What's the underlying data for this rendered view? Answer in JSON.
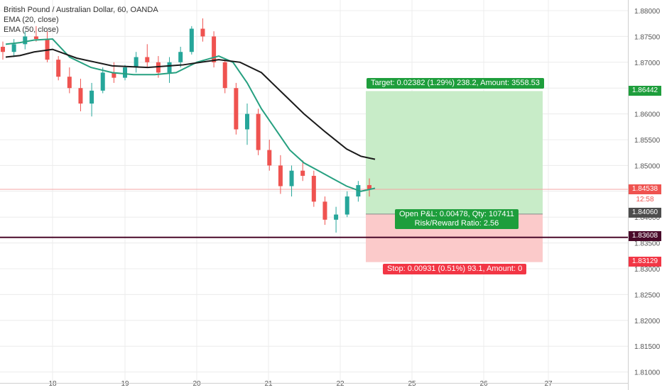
{
  "header": {
    "symbol_title": "British Pound / Australian Dollar, 60, OANDA",
    "ema20_label": "EMA (20, close)",
    "ema50_label": "EMA (50, close)"
  },
  "price_axis": {
    "ticks": [
      "1.88000",
      "1.87500",
      "1.87000",
      "1.86500",
      "1.86000",
      "1.85500",
      "1.85000",
      "1.84500",
      "1.84000",
      "1.83500",
      "1.83000",
      "1.82500",
      "1.82000",
      "1.81500",
      "1.81000"
    ],
    "tick_values": [
      1.88,
      1.875,
      1.87,
      1.865,
      1.86,
      1.855,
      1.85,
      1.845,
      1.84,
      1.835,
      1.83,
      1.825,
      1.82,
      1.815,
      1.81
    ]
  },
  "time_axis": {
    "labels": [
      "18",
      "19",
      "20",
      "21",
      "22",
      "25",
      "26",
      "27"
    ],
    "hour_index": [
      66,
      168,
      269,
      370,
      471,
      572,
      673,
      764
    ]
  },
  "tags": {
    "target": "1.86442",
    "last_price": "1.84538",
    "countdown": "12:58",
    "entry": "1.84060",
    "support": "1.83608",
    "stop": "1.83129"
  },
  "position": {
    "target_label": "Target: 0.02382 (1.29%) 238.2, Amount: 3558.53",
    "open_pnl_label": "Open P&L: 0.00478, Qty: 107411",
    "rr_label": "Risk/Reward Ratio: 2.56",
    "stop_label": "Stop: 0.00931 (0.51%) 93.1, Amount: 0"
  },
  "colors": {
    "up": "#26a69a",
    "down": "#ef5350",
    "ema20": "#26a080",
    "ema50": "#1a1a1a",
    "target_zone": "#c8ecc8",
    "stop_zone": "#fbcaca",
    "target_tag": "#1e9e3c",
    "stop_tag": "#f23645",
    "support": "#4a0a2a",
    "grid": "#ececec"
  },
  "chart_data": {
    "type": "candlestick",
    "title": "British Pound / Australian Dollar, 60, OANDA",
    "ylim": [
      1.8098,
      1.8822
    ],
    "grid": true,
    "series": [
      {
        "name": "EMA (20, close)",
        "values": [
          [
            0,
            1.8735
          ],
          [
            20,
            1.8738
          ],
          [
            40,
            1.8743
          ],
          [
            66,
            1.8745
          ],
          [
            90,
            1.871
          ],
          [
            120,
            1.869
          ],
          [
            150,
            1.868
          ],
          [
            180,
            1.8676
          ],
          [
            210,
            1.8676
          ],
          [
            240,
            1.868
          ],
          [
            269,
            1.87
          ],
          [
            300,
            1.8712
          ],
          [
            320,
            1.87
          ],
          [
            340,
            1.866
          ],
          [
            360,
            1.861
          ],
          [
            380,
            1.857
          ],
          [
            400,
            1.853
          ],
          [
            420,
            1.8505
          ],
          [
            440,
            1.849
          ],
          [
            460,
            1.8475
          ],
          [
            480,
            1.846
          ],
          [
            500,
            1.845
          ],
          [
            520,
            1.8456
          ]
        ]
      },
      {
        "name": "EMA (50, close)",
        "values": [
          [
            0,
            1.871
          ],
          [
            20,
            1.8713
          ],
          [
            40,
            1.872
          ],
          [
            66,
            1.8725
          ],
          [
            100,
            1.8708
          ],
          [
            150,
            1.8693
          ],
          [
            200,
            1.869
          ],
          [
            250,
            1.8695
          ],
          [
            300,
            1.8705
          ],
          [
            330,
            1.87
          ],
          [
            360,
            1.868
          ],
          [
            390,
            1.864
          ],
          [
            420,
            1.86
          ],
          [
            450,
            1.8565
          ],
          [
            480,
            1.8532
          ],
          [
            500,
            1.8518
          ],
          [
            520,
            1.8512
          ]
        ]
      }
    ],
    "candles_approx": [
      [
        1.873,
        1.874,
        1.8705,
        1.872
      ],
      [
        1.872,
        1.8745,
        1.871,
        1.8735
      ],
      [
        1.8735,
        1.876,
        1.8725,
        1.875
      ],
      [
        1.875,
        1.877,
        1.874,
        1.8745
      ],
      [
        1.8745,
        1.876,
        1.87,
        1.8705
      ],
      [
        1.8705,
        1.8712,
        1.8665,
        1.8672
      ],
      [
        1.8672,
        1.869,
        1.864,
        1.865
      ],
      [
        1.865,
        1.8668,
        1.8605,
        1.862
      ],
      [
        1.862,
        1.866,
        1.8595,
        1.8645
      ],
      [
        1.8645,
        1.869,
        1.864,
        1.868
      ],
      [
        1.868,
        1.87,
        1.866,
        1.867
      ],
      [
        1.867,
        1.8695,
        1.8665,
        1.869
      ],
      [
        1.869,
        1.872,
        1.868,
        1.871
      ],
      [
        1.871,
        1.8735,
        1.869,
        1.87
      ],
      [
        1.87,
        1.8712,
        1.867,
        1.868
      ],
      [
        1.868,
        1.871,
        1.866,
        1.87
      ],
      [
        1.87,
        1.873,
        1.869,
        1.872
      ],
      [
        1.872,
        1.877,
        1.8715,
        1.8765
      ],
      [
        1.8765,
        1.8785,
        1.874,
        1.875
      ],
      [
        1.875,
        1.876,
        1.869,
        1.87
      ],
      [
        1.87,
        1.8705,
        1.864,
        1.865
      ],
      [
        1.865,
        1.866,
        1.856,
        1.857
      ],
      [
        1.857,
        1.862,
        1.854,
        1.86
      ],
      [
        1.86,
        1.861,
        1.852,
        1.853
      ],
      [
        1.853,
        1.855,
        1.849,
        1.85
      ],
      [
        1.85,
        1.852,
        1.8445,
        1.846
      ],
      [
        1.846,
        1.85,
        1.844,
        1.849
      ],
      [
        1.849,
        1.851,
        1.847,
        1.848
      ],
      [
        1.848,
        1.849,
        1.842,
        1.843
      ],
      [
        1.843,
        1.844,
        1.8385,
        1.8395
      ],
      [
        1.8395,
        1.842,
        1.837,
        1.8405
      ],
      [
        1.8405,
        1.845,
        1.84,
        1.844
      ],
      [
        1.844,
        1.847,
        1.843,
        1.8462
      ],
      [
        1.8462,
        1.8475,
        1.844,
        1.8454
      ]
    ]
  }
}
